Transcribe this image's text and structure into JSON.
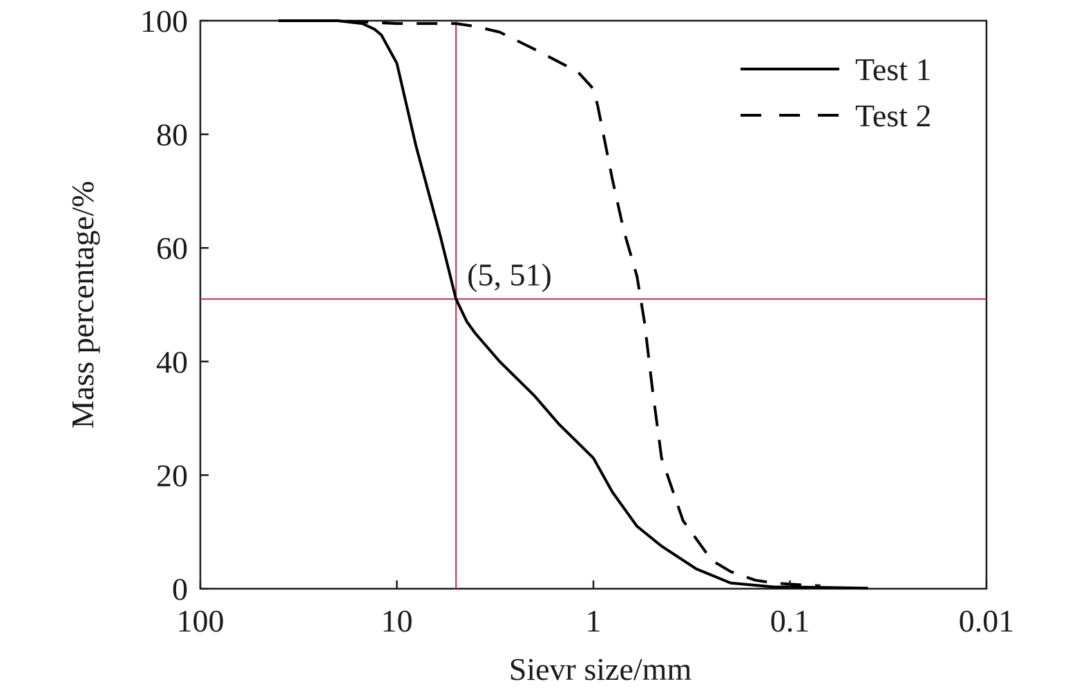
{
  "chart_data": {
    "type": "line",
    "xlabel": "Sievr size/mm",
    "ylabel": "Mass percentage/%",
    "x_scale": "log",
    "x_reversed": true,
    "xlim": [
      100,
      0.01
    ],
    "ylim": [
      0,
      100
    ],
    "x_ticks": [
      100,
      10,
      1,
      0.1,
      0.01
    ],
    "x_tick_labels": [
      "100",
      "10",
      "1",
      "0.1",
      "0.01"
    ],
    "y_ticks": [
      0,
      20,
      40,
      60,
      80,
      100
    ],
    "y_tick_labels": [
      "0",
      "20",
      "40",
      "60",
      "80",
      "100"
    ],
    "grid": false,
    "legend": "top-right",
    "series": [
      {
        "name": "Test 1",
        "style": "solid",
        "color": "#000000",
        "x": [
          40,
          20,
          15,
          13,
          12,
          10,
          8,
          6,
          5,
          4.4,
          4,
          3,
          2,
          1.5,
          1,
          0.8,
          0.6,
          0.45,
          0.3,
          0.2,
          0.12,
          0.1,
          0.06,
          0.04
        ],
        "y": [
          100,
          100,
          99.5,
          98.5,
          97.5,
          92.5,
          78,
          62,
          51,
          47,
          45,
          40,
          34,
          29,
          23,
          17,
          11,
          7.5,
          3.5,
          1,
          0.3,
          0.3,
          0.2,
          0.1
        ]
      },
      {
        "name": "Test 2",
        "style": "dashed",
        "color": "#000000",
        "x": [
          40,
          20,
          10,
          5,
          4,
          3,
          2,
          1.2,
          1,
          0.95,
          0.8,
          0.7,
          0.6,
          0.55,
          0.5,
          0.45,
          0.35,
          0.25,
          0.2,
          0.15,
          0.12,
          0.1,
          0.07
        ],
        "y": [
          100,
          100,
          99.5,
          99.5,
          99,
          98,
          95,
          91,
          88,
          85,
          72,
          63,
          55,
          47,
          35,
          23,
          12,
          5,
          3,
          1.5,
          1,
          0.8,
          0.5
        ]
      }
    ],
    "annotations": [
      {
        "label": "(5, 51)",
        "x": 5,
        "y": 51,
        "color": "#d0245a"
      }
    ]
  }
}
